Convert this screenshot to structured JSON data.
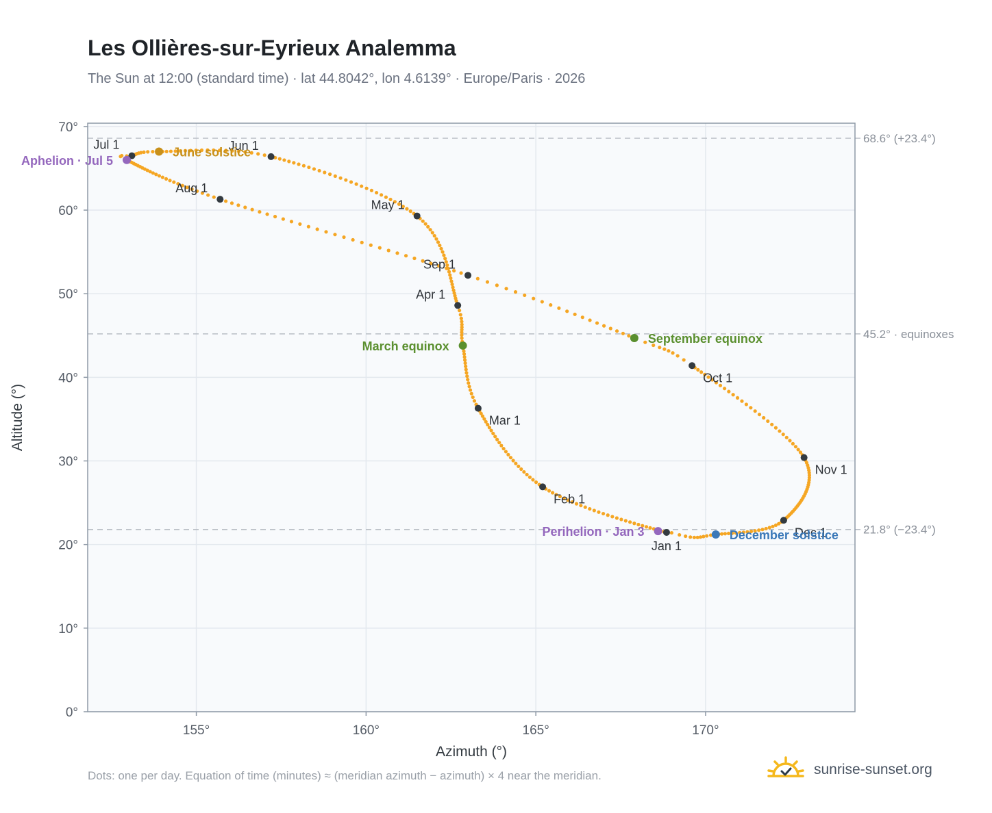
{
  "title": "Les Ollières-sur-Eyrieux Analemma",
  "subtitle": "The Sun at 12:00 (standard time) · lat 44.8042°, lon 4.6139° · Europe/Paris · 2026",
  "footnote": "Dots: one per day. Equation of time (minutes) ≈ (meridian azimuth − azimuth) × 4 near the meridian.",
  "brand": {
    "name": "sunrise-sunset.org",
    "logo_icon": "sun-checkmark-icon"
  },
  "colors": {
    "curve": "#f5a623",
    "month_marker": "#333a40",
    "june_solstice": "#c8901a",
    "december_solstice": "#3a78b8",
    "equinox": "#5a8f2e",
    "aphelion_perihelion": "#9467bd",
    "plot_bg": "#f8fafc",
    "grid": "#e3e8ee",
    "reference_line": "#b9bec5"
  },
  "chart_data": {
    "type": "scatter",
    "title": "Les Ollières-sur-Eyrieux Analemma",
    "subtitle": "The Sun at 12:00 (standard time) · lat 44.8042°, lon 4.6139° · Europe/Paris · 2026",
    "xlabel": "Azimuth (°)",
    "ylabel": "Altitude (°)",
    "xlim": [
      151.8,
      174.4
    ],
    "ylim": [
      0,
      70.4
    ],
    "x_ticks": [
      155,
      160,
      165,
      170
    ],
    "x_tick_labels": [
      "155°",
      "160°",
      "165°",
      "170°"
    ],
    "y_ticks": [
      0,
      10,
      20,
      30,
      40,
      50,
      60,
      70
    ],
    "y_tick_labels": [
      "0°",
      "10°",
      "20°",
      "30°",
      "40°",
      "50°",
      "60°",
      "70°"
    ],
    "grid": true,
    "series": [
      {
        "points_note": "one dot per day",
        "anchors": [
          {
            "day": 1,
            "az": 168.85,
            "alt": 21.45
          },
          {
            "day": 32,
            "az": 165.2,
            "alt": 26.9
          },
          {
            "day": 60,
            "az": 163.3,
            "alt": 36.3
          },
          {
            "day": 79,
            "az": 162.85,
            "alt": 43.8
          },
          {
            "day": 91,
            "az": 162.7,
            "alt": 48.6
          },
          {
            "day": 121,
            "az": 161.5,
            "alt": 59.3
          },
          {
            "day": 152,
            "az": 157.2,
            "alt": 66.4
          },
          {
            "day": 172,
            "az": 153.9,
            "alt": 67.0
          },
          {
            "day": 182,
            "az": 153.1,
            "alt": 66.5
          },
          {
            "day": 186,
            "az": 152.95,
            "alt": 66.0
          },
          {
            "day": 213,
            "az": 155.7,
            "alt": 61.3
          },
          {
            "day": 244,
            "az": 163.0,
            "alt": 52.2
          },
          {
            "day": 265,
            "az": 167.9,
            "alt": 44.7
          },
          {
            "day": 274,
            "az": 169.6,
            "alt": 41.4
          },
          {
            "day": 305,
            "az": 172.9,
            "alt": 30.4
          },
          {
            "day": 335,
            "az": 172.3,
            "alt": 22.9
          },
          {
            "day": 355,
            "az": 170.3,
            "alt": 21.2
          },
          {
            "day": 365,
            "az": 169.0,
            "alt": 21.4
          }
        ]
      }
    ],
    "month_markers": [
      {
        "label": "Jan 1",
        "az": 168.85,
        "alt": 21.45,
        "label_pos": "below"
      },
      {
        "label": "Feb 1",
        "az": 165.2,
        "alt": 26.9,
        "label_pos": "below-right"
      },
      {
        "label": "Mar 1",
        "az": 163.3,
        "alt": 36.3,
        "label_pos": "below-right"
      },
      {
        "label": "Apr 1",
        "az": 162.7,
        "alt": 48.6,
        "label_pos": "above-left"
      },
      {
        "label": "May 1",
        "az": 161.5,
        "alt": 59.3,
        "label_pos": "above-left"
      },
      {
        "label": "Jun 1",
        "az": 157.2,
        "alt": 66.4,
        "label_pos": "above-left"
      },
      {
        "label": "Jul 1",
        "az": 153.1,
        "alt": 66.5,
        "label_pos": "above-left"
      },
      {
        "label": "Aug 1",
        "az": 155.7,
        "alt": 61.3,
        "label_pos": "above-left"
      },
      {
        "label": "Sep 1",
        "az": 163.0,
        "alt": 52.2,
        "label_pos": "above-left"
      },
      {
        "label": "Oct 1",
        "az": 169.6,
        "alt": 41.4,
        "label_pos": "below-right"
      },
      {
        "label": "Nov 1",
        "az": 172.9,
        "alt": 30.4,
        "label_pos": "below-right"
      },
      {
        "label": "Dec 1",
        "az": 172.3,
        "alt": 22.9,
        "label_pos": "below-right"
      }
    ],
    "events": [
      {
        "label": "June solstice",
        "az": 153.9,
        "alt": 67.0,
        "color_key": "june_solstice",
        "label_pos": "right"
      },
      {
        "label": "December solstice",
        "az": 170.3,
        "alt": 21.2,
        "color_key": "december_solstice",
        "label_pos": "right"
      },
      {
        "label": "March equinox",
        "az": 162.85,
        "alt": 43.8,
        "color_key": "equinox",
        "label_pos": "left"
      },
      {
        "label": "September equinox",
        "az": 167.9,
        "alt": 44.7,
        "color_key": "equinox",
        "label_pos": "right"
      },
      {
        "label": "Aphelion · Jul 5",
        "az": 152.95,
        "alt": 66.0,
        "color_key": "aphelion_perihelion",
        "label_pos": "left"
      },
      {
        "label": "Perihelion · Jan 3",
        "az": 168.6,
        "alt": 21.6,
        "color_key": "aphelion_perihelion",
        "label_pos": "left"
      }
    ],
    "reference_lines": [
      {
        "alt": 68.6,
        "label": "68.6° (+23.4°)"
      },
      {
        "alt": 45.2,
        "label": "45.2° · equinoxes"
      },
      {
        "alt": 21.8,
        "label": "21.8° (−23.4°)"
      }
    ]
  }
}
